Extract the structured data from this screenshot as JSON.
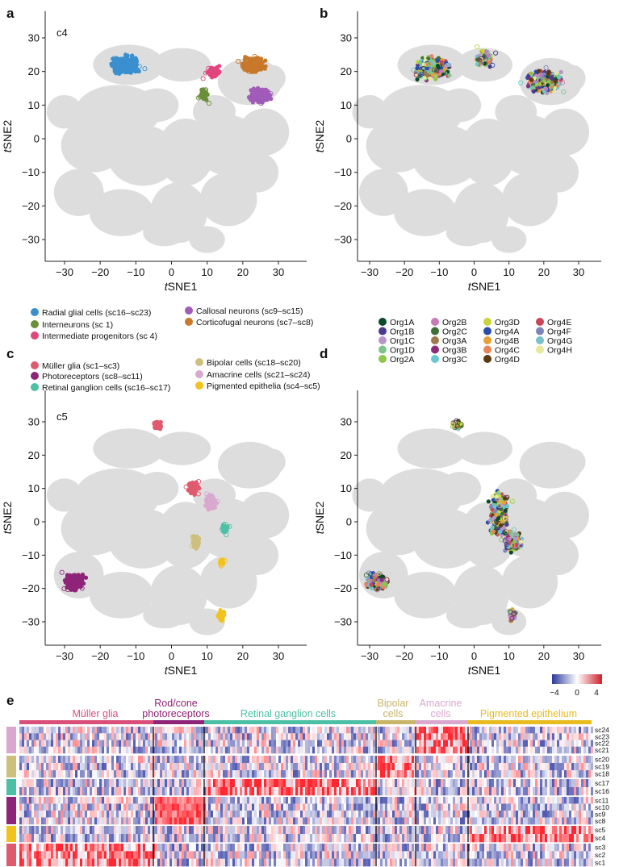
{
  "panels": {
    "a": {
      "letter": "a",
      "inset": "c4"
    },
    "b": {
      "letter": "b"
    },
    "c": {
      "letter": "c",
      "inset": "c5"
    },
    "d": {
      "letter": "d"
    },
    "e": {
      "letter": "e"
    }
  },
  "axes": {
    "xlabel_t": "t",
    "xlabel_rest": "SNE1",
    "ylabel_t": "t",
    "ylabel_rest": "SNE2",
    "xticks": [
      -30,
      -20,
      -10,
      0,
      10,
      20,
      30
    ],
    "yticks": [
      30,
      20,
      10,
      0,
      -10,
      -20,
      -30
    ],
    "xlim": [
      -37,
      37
    ],
    "ylim": [
      -37,
      35
    ]
  },
  "legend_a": [
    {
      "label": "Radial glial cells (sc16–sc23)",
      "color": "#3a8fcf"
    },
    {
      "label": "Interneurons (sc 1)",
      "color": "#6b8e3a"
    },
    {
      "label": "Intermediate progenitors (sc 4)",
      "color": "#e0457b"
    },
    {
      "label": "Callosal neurons (sc9–sc15)",
      "color": "#a15bb8"
    },
    {
      "label": "Corticofugal neurons (sc7–sc8)",
      "color": "#c8782a"
    }
  ],
  "legend_b": [
    {
      "label": "Org1A",
      "color": "#0b4a2a"
    },
    {
      "label": "Org1B",
      "color": "#4b3a8c"
    },
    {
      "label": "Org1C",
      "color": "#b795c9"
    },
    {
      "label": "Org1D",
      "color": "#7cc48a"
    },
    {
      "label": "Org2A",
      "color": "#8cc64a"
    },
    {
      "label": "Org2B",
      "color": "#c97ab8"
    },
    {
      "label": "Org2C",
      "color": "#3f6e38"
    },
    {
      "label": "Org3A",
      "color": "#a0794a"
    },
    {
      "label": "Org3B",
      "color": "#8e2c7a"
    },
    {
      "label": "Org3C",
      "color": "#66c8d0"
    },
    {
      "label": "Org3D",
      "color": "#c8d43a"
    },
    {
      "label": "Org4A",
      "color": "#2a4da8"
    },
    {
      "label": "Org4B",
      "color": "#e6a03a"
    },
    {
      "label": "Org4C",
      "color": "#e8845a"
    },
    {
      "label": "Org4D",
      "color": "#5a3a12"
    },
    {
      "label": "Org4E",
      "color": "#c8485a"
    },
    {
      "label": "Org4F",
      "color": "#7d86b8"
    },
    {
      "label": "Org4G",
      "color": "#7ac2c8"
    },
    {
      "label": "Org4H",
      "color": "#e6e89a"
    }
  ],
  "legend_c": [
    {
      "label": "Müller glia (sc1–sc3)",
      "color": "#e05a6e"
    },
    {
      "label": "Photoreceptors (sc8–sc11)",
      "color": "#8e2478"
    },
    {
      "label": "Retinal ganglion cells (sc16–sc17)",
      "color": "#4cc0a4"
    },
    {
      "label": "Bipolar cells (sc18–sc20)",
      "color": "#cdbf7c"
    },
    {
      "label": "Amacrine cells (sc21–sc24)",
      "color": "#d9a8cf"
    },
    {
      "label": "Pigmented epithelia (sc4–sc5)",
      "color": "#f2c21e"
    }
  ],
  "colorbar": {
    "ticks": [
      "−4",
      "0",
      "4"
    ],
    "range": [
      -4,
      4
    ]
  },
  "heatmap": {
    "headers": [
      {
        "label": "Müller glia",
        "color": "#d94f7a"
      },
      {
        "label": "Rod/cone",
        "color": "#8e2478"
      },
      {
        "label": "photoreceptors",
        "color": "#8e2478"
      },
      {
        "label": "Retinal ganglion cells",
        "color": "#4cc0a4"
      },
      {
        "label": "Bipolar",
        "color": "#c8b56a"
      },
      {
        "label": "cells",
        "color": "#c8b56a"
      },
      {
        "label": "Amacrine",
        "color": "#d9a8cf"
      },
      {
        "label": "cells",
        "color": "#d9a8cf"
      },
      {
        "label": "Pigmented epithelium",
        "color": "#e8bb1e"
      }
    ],
    "row_groups": [
      {
        "color": "#d9a8cf",
        "labels": [
          "sc24",
          "sc23",
          "sc22",
          "sc21"
        ]
      },
      {
        "color": "#cdbf7c",
        "labels": [
          "sc20",
          "sc19",
          "sc18"
        ]
      },
      {
        "color": "#4cc0a4",
        "labels": [
          "sc17",
          "sc16"
        ]
      },
      {
        "color": "#8e2478",
        "labels": [
          "sc11",
          "sc10",
          "sc9",
          "sc8"
        ]
      },
      {
        "color": "#f2c21e",
        "labels": [
          "sc5",
          "sc4"
        ]
      },
      {
        "color": "#e05a6e",
        "labels": [
          "sc3",
          "sc2",
          "sc1"
        ]
      }
    ]
  },
  "chart_data": [
    {
      "type": "scatter",
      "panel": "a",
      "title": "c4",
      "xlabel": "tSNE1",
      "ylabel": "tSNE2",
      "xlim": [
        -37,
        37
      ],
      "ylim": [
        -37,
        35
      ],
      "background": "#dddddd",
      "series": [
        {
          "name": "Radial glial cells (sc16–sc23)",
          "color": "#3a8fcf",
          "center": [
            -13,
            22
          ]
        },
        {
          "name": "Interneurons (sc 1)",
          "color": "#6b8e3a",
          "center": [
            9,
            13
          ]
        },
        {
          "name": "Intermediate progenitors (sc 4)",
          "color": "#e0457b",
          "center": [
            12,
            20
          ]
        },
        {
          "name": "Callosal neurons (sc9–sc15)",
          "color": "#a15bb8",
          "center": [
            25,
            13
          ]
        },
        {
          "name": "Corticofugal neurons (sc7–sc8)",
          "color": "#c8782a",
          "center": [
            23,
            22
          ]
        }
      ]
    },
    {
      "type": "scatter",
      "panel": "b",
      "xlabel": "tSNE1",
      "ylabel": "tSNE2",
      "xlim": [
        -37,
        37
      ],
      "ylim": [
        -37,
        35
      ],
      "series_note": "colored by organoid Org1A–Org4H, cells within c4 cluster"
    },
    {
      "type": "scatter",
      "panel": "c",
      "title": "c5",
      "xlabel": "tSNE1",
      "ylabel": "tSNE2",
      "xlim": [
        -37,
        37
      ],
      "ylim": [
        -37,
        35
      ],
      "series": [
        {
          "name": "Müller glia (sc1–sc3)",
          "color": "#e05a6e",
          "center": [
            -4,
            29
          ]
        },
        {
          "name": "Photoreceptors (sc8–sc11)",
          "color": "#8e2478",
          "center": [
            -27,
            -18
          ]
        },
        {
          "name": "Retinal ganglion cells (sc16–sc17)",
          "color": "#4cc0a4",
          "center": [
            15,
            -2
          ]
        },
        {
          "name": "Bipolar cells (sc18–sc20)",
          "color": "#cdbf7c",
          "center": [
            7,
            -6
          ]
        },
        {
          "name": "Amacrine cells (sc21–sc24)",
          "color": "#d9a8cf",
          "center": [
            11,
            6
          ]
        },
        {
          "name": "Pigmented epithelia (sc4–sc5)",
          "color": "#f2c21e",
          "center": [
            14,
            -28
          ]
        }
      ]
    },
    {
      "type": "scatter",
      "panel": "d",
      "xlabel": "tSNE1",
      "ylabel": "tSNE2",
      "xlim": [
        -37,
        37
      ],
      "ylim": [
        -37,
        35
      ],
      "series_note": "colored by organoid Org1A–Org4H, cells within c5 cluster"
    },
    {
      "type": "heatmap",
      "panel": "e",
      "columns": [
        "Müller glia",
        "Rod/cone photoreceptors",
        "Retinal ganglion cells",
        "Bipolar cells",
        "Amacrine cells",
        "Pigmented epithelium"
      ],
      "rows": [
        "sc24",
        "sc23",
        "sc22",
        "sc21",
        "sc20",
        "sc19",
        "sc18",
        "sc17",
        "sc16",
        "sc11",
        "sc10",
        "sc9",
        "sc8",
        "sc5",
        "sc4",
        "sc3",
        "sc2",
        "sc1"
      ],
      "color_range": [
        -4,
        4
      ]
    }
  ]
}
